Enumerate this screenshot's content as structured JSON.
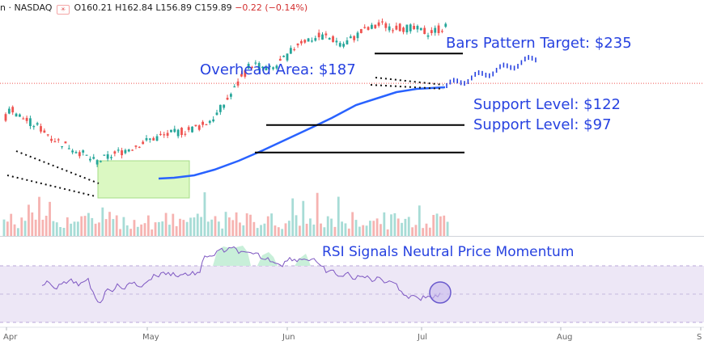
{
  "header": {
    "ticker_text": "n · NASDAQ",
    "open": "O160.21",
    "high": "H162.84",
    "low": "L156.89",
    "close": "C159.89",
    "change": "−0.22 (−0.14%)"
  },
  "annotations": {
    "overhead": "Overhead Area: $187",
    "target": "Bars Pattern Target: $235",
    "support1": "Support Level: $122",
    "support2": "Support Level: $97",
    "rsi": "RSI Signals Neutral Price Momentum"
  },
  "colors": {
    "up": "#26a69a",
    "down": "#ef5350",
    "ma": "#2962ff",
    "annotation": "#2742e0",
    "rsi_line": "#7e57c2",
    "rsi_band": "#ede7f6",
    "box_fill": "#ccf5a8"
  },
  "chart_data": {
    "type": "candlestick",
    "title": "",
    "price_range_visible": [
      60,
      250
    ],
    "months": [
      "Apr",
      "May",
      "Jun",
      "Jul",
      "Aug",
      "S"
    ],
    "levels": {
      "overhead": 187,
      "target": 235,
      "support1": 122,
      "support2": 97
    },
    "last_close": 159.89,
    "rsi_bands": [
      70,
      50,
      30
    ],
    "rsi_range": [
      20,
      90
    ]
  }
}
